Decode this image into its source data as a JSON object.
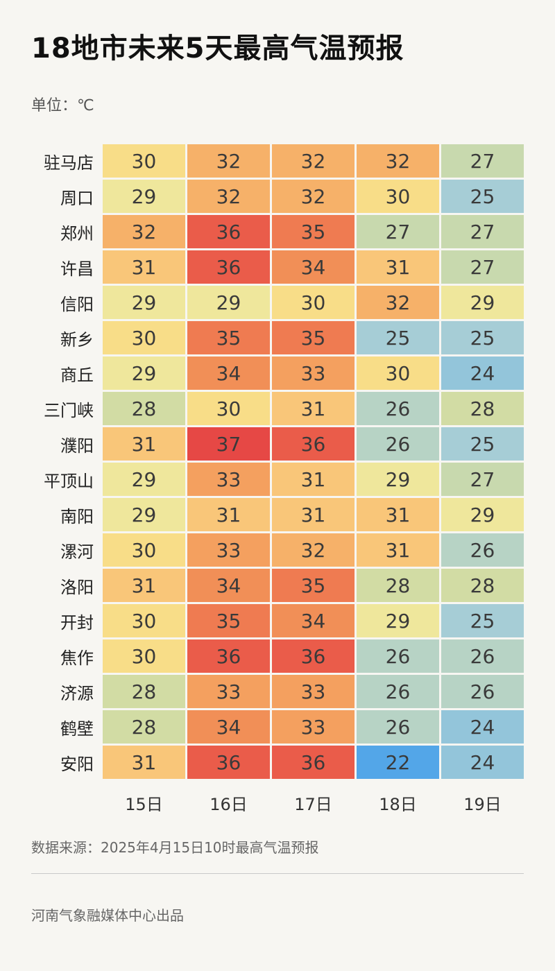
{
  "page": {
    "title": "18地市未来5天最高气温预报",
    "unit_label": "单位：℃",
    "source_label": "数据来源：2025年4月15日10时最高气温预报",
    "credit_label": "河南气象融媒体中心出品"
  },
  "chart_data": {
    "type": "heatmap",
    "title": "18地市未来5天最高气温预报",
    "unit": "℃",
    "columns": [
      "15日",
      "16日",
      "17日",
      "18日",
      "19日"
    ],
    "rows": [
      {
        "city": "驻马店",
        "values": [
          30,
          32,
          32,
          32,
          27
        ]
      },
      {
        "city": "周口",
        "values": [
          29,
          32,
          32,
          30,
          25
        ]
      },
      {
        "city": "郑州",
        "values": [
          32,
          36,
          35,
          27,
          27
        ]
      },
      {
        "city": "许昌",
        "values": [
          31,
          36,
          34,
          31,
          27
        ]
      },
      {
        "city": "信阳",
        "values": [
          29,
          29,
          30,
          32,
          29
        ]
      },
      {
        "city": "新乡",
        "values": [
          30,
          35,
          35,
          25,
          25
        ]
      },
      {
        "city": "商丘",
        "values": [
          29,
          34,
          33,
          30,
          24
        ]
      },
      {
        "city": "三门峡",
        "values": [
          28,
          30,
          31,
          26,
          28
        ]
      },
      {
        "city": "濮阳",
        "values": [
          31,
          37,
          36,
          26,
          25
        ]
      },
      {
        "city": "平顶山",
        "values": [
          29,
          33,
          31,
          29,
          27
        ]
      },
      {
        "city": "南阳",
        "values": [
          29,
          31,
          31,
          31,
          29
        ]
      },
      {
        "city": "漯河",
        "values": [
          30,
          33,
          32,
          31,
          26
        ]
      },
      {
        "city": "洛阳",
        "values": [
          31,
          34,
          35,
          28,
          28
        ]
      },
      {
        "city": "开封",
        "values": [
          30,
          35,
          34,
          29,
          25
        ]
      },
      {
        "city": "焦作",
        "values": [
          30,
          36,
          36,
          26,
          26
        ]
      },
      {
        "city": "济源",
        "values": [
          28,
          33,
          33,
          26,
          26
        ]
      },
      {
        "city": "鹤壁",
        "values": [
          28,
          34,
          33,
          26,
          24
        ]
      },
      {
        "city": "安阳",
        "values": [
          31,
          36,
          36,
          22,
          24
        ]
      }
    ],
    "value_range": [
      22,
      37
    ],
    "legend_position": "none",
    "grid": false,
    "color_scale": {
      "22": "#53a6e8",
      "23": "#7ab8db",
      "24": "#93c5da",
      "25": "#a6cdd6",
      "26": "#b7d3c5",
      "27": "#c8d9ae",
      "28": "#d2dca4",
      "29": "#efe79c",
      "30": "#f8dd88",
      "31": "#f9c679",
      "32": "#f6b169",
      "33": "#f4a05f",
      "34": "#f18f57",
      "35": "#ef7b51",
      "36": "#ea5c4a",
      "37": "#e64845"
    },
    "cell_text_color": "#3a3a3a"
  }
}
